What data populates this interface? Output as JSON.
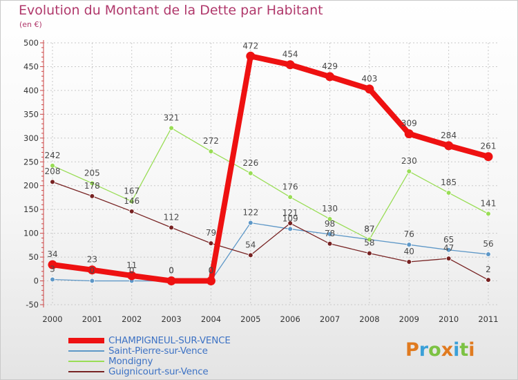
{
  "title": "Evolution du Montant de la Dette par Habitant",
  "subtitle": "(en €)",
  "brand": {
    "text": "Proxiti",
    "letter_colors": [
      "#e07a1f",
      "#3aa0d8",
      "#7cc243",
      "#e07a1f",
      "#3aa0d8",
      "#7cc243",
      "#e07a1f"
    ]
  },
  "chart_data": {
    "type": "line",
    "title": "Evolution du Montant de la Dette par Habitant",
    "subtitle": "(en €)",
    "x": [
      "2000",
      "2001",
      "2002",
      "2003",
      "2004",
      "2005",
      "2006",
      "2007",
      "2008",
      "2009",
      "2010",
      "2011"
    ],
    "ylim": [
      -50,
      500
    ],
    "yticks": [
      "-50",
      "0",
      "50",
      "100",
      "150",
      "200",
      "250",
      "300",
      "350",
      "400",
      "450",
      "500"
    ],
    "grid": true,
    "legend_position": "bottom-left",
    "series": [
      {
        "name": "CHAMPIGNEUL-SUR-VENCE",
        "color": "#ee1111",
        "values": [
          34,
          23,
          11,
          0,
          0,
          472,
          454,
          429,
          403,
          309,
          284,
          261
        ],
        "labels": [
          "34",
          "23",
          "11",
          "0",
          "0",
          "472",
          "454",
          "429",
          "403",
          "309",
          "284",
          "261"
        ]
      },
      {
        "name": "Saint-Pierre-sur-Vence",
        "color": "#5d97c7",
        "values": [
          3,
          0,
          0,
          0,
          0,
          122,
          109,
          98,
          87,
          76,
          65,
          56
        ],
        "labels": [
          "3",
          "0",
          "0",
          "0",
          "0",
          "122",
          "109",
          "98",
          "87",
          "76",
          "65",
          "56"
        ]
      },
      {
        "name": "Mondigny",
        "color": "#99dd55",
        "values": [
          242,
          205,
          167,
          321,
          272,
          226,
          176,
          130,
          87,
          230,
          185,
          141
        ],
        "labels": [
          "242",
          "205",
          "167",
          "321",
          "272",
          "226",
          "176",
          "130",
          "87",
          "230",
          "185",
          "141"
        ]
      },
      {
        "name": "Guignicourt-sur-Vence",
        "color": "#772222",
        "values": [
          208,
          178,
          146,
          112,
          79,
          54,
          121,
          78,
          58,
          40,
          47,
          2
        ],
        "labels": [
          "208",
          "178",
          "146",
          "112",
          "79",
          "54",
          "121",
          "78",
          "58",
          "40",
          "47",
          "2"
        ]
      }
    ]
  }
}
